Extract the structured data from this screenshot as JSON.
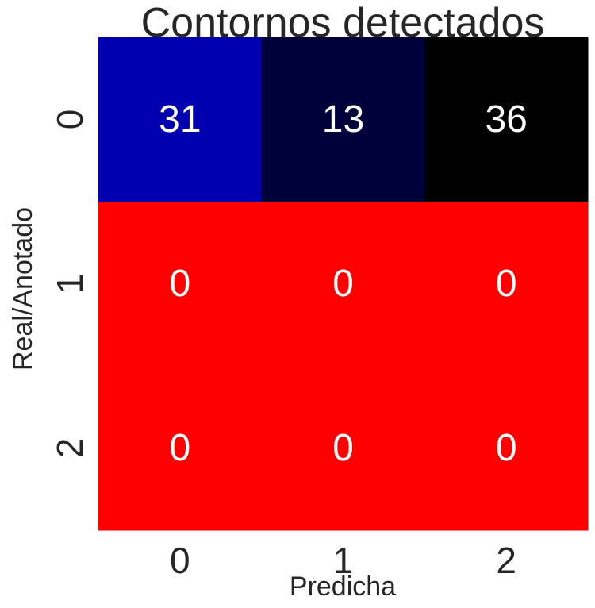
{
  "chart_data": {
    "type": "heatmap",
    "title": "Contornos detectados",
    "xlabel": "Predicha",
    "ylabel": "Real/Anotado",
    "x_categories": [
      "0",
      "1",
      "2"
    ],
    "y_categories": [
      "0",
      "1",
      "2"
    ],
    "values": [
      [
        31,
        13,
        36
      ],
      [
        0,
        0,
        0
      ],
      [
        0,
        0,
        0
      ]
    ],
    "cell_colors": [
      [
        "#0000b0",
        "#00003b",
        "#000000"
      ],
      [
        "#ff0000",
        "#ff0000",
        "#ff0000"
      ],
      [
        "#ff0000",
        "#ff0000",
        "#ff0000"
      ]
    ],
    "annotation_color": "#ffffff",
    "colorbar": false,
    "grid": false
  }
}
